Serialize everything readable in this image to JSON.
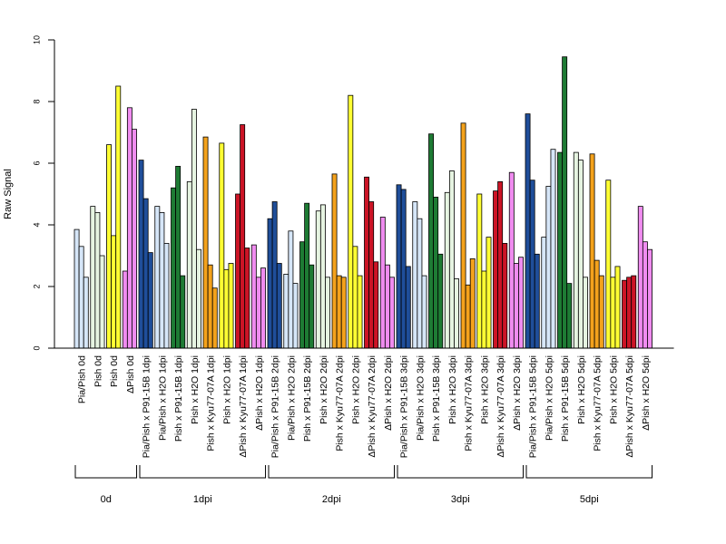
{
  "chart_data": {
    "type": "bar",
    "ylabel": "Raw Signal",
    "ylim": [
      0,
      10
    ],
    "y_ticks": [
      0,
      2,
      4,
      6,
      8,
      10
    ],
    "grid": false,
    "legend": "none",
    "groups": [
      {
        "label": "Pia/Pish 0d",
        "color": "#d6e6f8",
        "values": [
          3.85,
          3.3,
          2.3
        ]
      },
      {
        "label": "Pish 0d",
        "color": "#e6f4e1",
        "values": [
          4.6,
          4.4,
          3.0
        ]
      },
      {
        "label": "Pish 0d",
        "color": "#ffff33",
        "values": [
          6.6,
          3.65,
          8.5
        ]
      },
      {
        "label": "ΔPish 0d",
        "color": "#f08cf0",
        "values": [
          2.5,
          7.8,
          7.1
        ]
      },
      {
        "label": "Pia/Pish x P91-15B 1dpi",
        "color": "#1f4e9a",
        "values": [
          6.1,
          4.85,
          3.1
        ]
      },
      {
        "label": "Pia/Pish x H2O 1dpi",
        "color": "#d6e6f8",
        "values": [
          4.6,
          4.4,
          3.4
        ]
      },
      {
        "label": "Pish x P91-15B 1dpi",
        "color": "#1e7b34",
        "values": [
          5.2,
          5.9,
          2.35
        ]
      },
      {
        "label": "Pish x H2O 1dpi",
        "color": "#e6f4e1",
        "values": [
          5.4,
          7.75,
          3.2
        ]
      },
      {
        "label": "Pish x Kyu77-07A 1dpi",
        "color": "#f4a21c",
        "values": [
          6.85,
          2.7,
          1.95
        ]
      },
      {
        "label": "Pish x H2O 1dpi",
        "color": "#ffff33",
        "values": [
          6.65,
          2.55,
          2.75
        ]
      },
      {
        "label": "ΔPish x Kyu77-07A 1dpi",
        "color": "#cc1426",
        "values": [
          5.0,
          7.25,
          3.25
        ]
      },
      {
        "label": "ΔPish x H2O 1dpi",
        "color": "#f08cf0",
        "values": [
          3.35,
          2.3,
          2.6
        ]
      },
      {
        "label": "Pia/Pish x P91-15B 2dpi",
        "color": "#1f4e9a",
        "values": [
          4.2,
          4.75,
          2.75
        ]
      },
      {
        "label": "Pia/Pish x H2O 2dpi",
        "color": "#d6e6f8",
        "values": [
          2.4,
          3.8,
          2.1
        ]
      },
      {
        "label": "Pish x P91-15B 2dpi",
        "color": "#1e7b34",
        "values": [
          3.45,
          4.7,
          2.7
        ]
      },
      {
        "label": "Pish x H2O 2dpi",
        "color": "#e6f4e1",
        "values": [
          4.45,
          4.65,
          2.3
        ]
      },
      {
        "label": "Pish x Kyu77-07A 2dpi",
        "color": "#f4a21c",
        "values": [
          5.65,
          2.35,
          2.3
        ]
      },
      {
        "label": "Pish x H2O 2dpi",
        "color": "#ffff33",
        "values": [
          8.2,
          3.3,
          2.35
        ]
      },
      {
        "label": "ΔPish x Kyu77-07A 2dpi",
        "color": "#cc1426",
        "values": [
          5.55,
          4.75,
          2.8
        ]
      },
      {
        "label": "ΔPish x H2O 2dpi",
        "color": "#f08cf0",
        "values": [
          4.25,
          2.7,
          2.3
        ]
      },
      {
        "label": "Pia/Pish x P91-15B 3dpi",
        "color": "#1f4e9a",
        "values": [
          5.3,
          5.15,
          2.65
        ]
      },
      {
        "label": "Pia/Pish x H2O 3dpi",
        "color": "#d6e6f8",
        "values": [
          4.75,
          4.2,
          2.35
        ]
      },
      {
        "label": "Pish x P91-15B 3dpi",
        "color": "#1e7b34",
        "values": [
          6.95,
          4.9,
          3.05
        ]
      },
      {
        "label": "Pish x H2O 3dpi",
        "color": "#e6f4e1",
        "values": [
          5.05,
          5.75,
          2.25
        ]
      },
      {
        "label": "Pish x Kyu77-07A 3dpi",
        "color": "#f4a21c",
        "values": [
          7.3,
          2.05,
          2.9
        ]
      },
      {
        "label": "Pish x H2O 3dpi",
        "color": "#ffff33",
        "values": [
          5.0,
          2.5,
          3.6
        ]
      },
      {
        "label": "ΔPish x Kyu77-07A 3dpi",
        "color": "#cc1426",
        "values": [
          5.1,
          5.4,
          3.4
        ]
      },
      {
        "label": "ΔPish x H2O 3dpi",
        "color": "#f08cf0",
        "values": [
          5.7,
          2.75,
          2.95
        ]
      },
      {
        "label": "Pia/Pish x P91-15B 5dpi",
        "color": "#1f4e9a",
        "values": [
          7.6,
          5.45,
          3.05
        ]
      },
      {
        "label": "Pia/Pish x H2O 5dpi",
        "color": "#d6e6f8",
        "values": [
          3.6,
          5.25,
          6.45
        ]
      },
      {
        "label": "Pish x P91-15B 5dpi",
        "color": "#1e7b34",
        "values": [
          6.35,
          9.45,
          2.1
        ]
      },
      {
        "label": "Pish x H2O 5dpi",
        "color": "#e6f4e1",
        "values": [
          6.35,
          6.1,
          2.3
        ]
      },
      {
        "label": "Pish x Kyu77-07A 5dpi",
        "color": "#f4a21c",
        "values": [
          6.3,
          2.85,
          2.35
        ]
      },
      {
        "label": "Pish x H2O 5dpi",
        "color": "#ffff33",
        "values": [
          5.45,
          2.3,
          2.65
        ]
      },
      {
        "label": "ΔPish x Kyu77-07A 5dpi",
        "color": "#cc1426",
        "values": [
          2.2,
          2.3,
          2.35
        ]
      },
      {
        "label": "ΔPish x H2O 5dpi",
        "color": "#f08cf0",
        "values": [
          4.6,
          3.45,
          3.2
        ]
      }
    ],
    "time_groups": [
      {
        "label": "0d",
        "start": 0,
        "end": 3
      },
      {
        "label": "1dpi",
        "start": 4,
        "end": 11
      },
      {
        "label": "2dpi",
        "start": 12,
        "end": 19
      },
      {
        "label": "3dpi",
        "start": 20,
        "end": 27
      },
      {
        "label": "5dpi",
        "start": 28,
        "end": 35
      }
    ]
  }
}
